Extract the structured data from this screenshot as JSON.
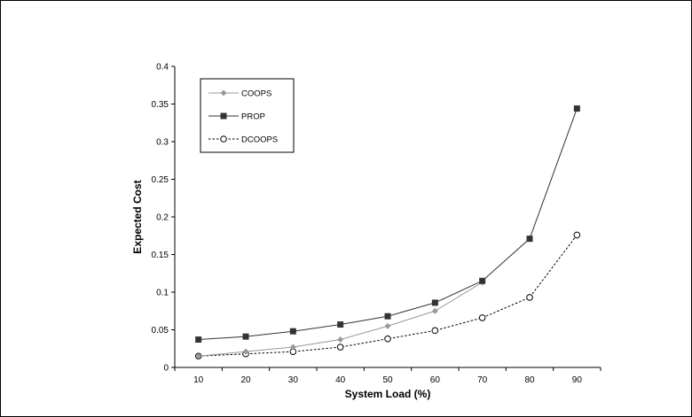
{
  "chart_data": {
    "type": "line",
    "title": "",
    "xlabel": "System Load (%)",
    "ylabel": "Expected Cost",
    "x": [
      10,
      20,
      30,
      40,
      50,
      60,
      70,
      80,
      90
    ],
    "xlim": [
      5,
      95
    ],
    "ylim": [
      0,
      0.4
    ],
    "y_ticks": [
      "0",
      "0.05",
      "0.1",
      "0.15",
      "0.2",
      "0.25",
      "0.3",
      "0.35",
      "0.4"
    ],
    "x_ticks": [
      "10",
      "20",
      "30",
      "40",
      "50",
      "60",
      "70",
      "80",
      "90"
    ],
    "grid": false,
    "legend_position": "top-left",
    "series": [
      {
        "name": "COOPS",
        "values": [
          0.015,
          0.021,
          0.027,
          0.037,
          0.055,
          0.075,
          0.113,
          null,
          null
        ],
        "color": "#999999",
        "marker": "diamond",
        "line": "solid"
      },
      {
        "name": "PROP",
        "values": [
          0.037,
          0.041,
          0.048,
          0.057,
          0.068,
          0.086,
          0.115,
          0.171,
          0.344
        ],
        "color": "#333333",
        "marker": "square",
        "line": "solid"
      },
      {
        "name": "DCOOPS",
        "values": [
          0.015,
          0.018,
          0.021,
          0.027,
          0.038,
          0.049,
          0.066,
          0.093,
          0.176
        ],
        "color": "#000000",
        "marker": "circle",
        "line": "dashed"
      }
    ]
  }
}
